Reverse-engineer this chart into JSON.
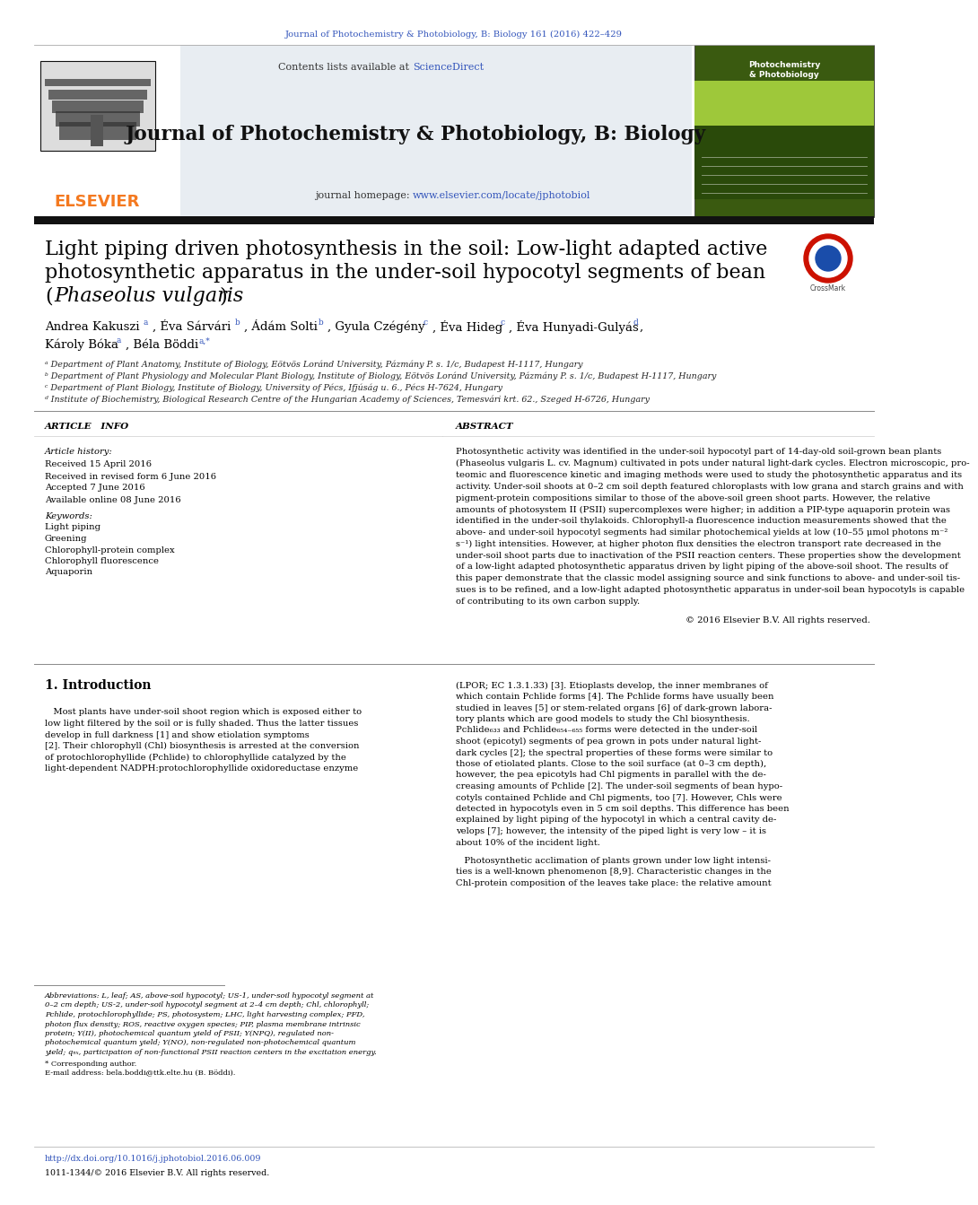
{
  "bg_color": "#ffffff",
  "top_citation": "Journal of Photochemistry & Photobiology, B: Biology 161 (2016) 422–429",
  "journal_name": "Journal of Photochemistry & Photobiology, B: Biology",
  "contents_text": "Contents lists available at ",
  "sciencedirect": "ScienceDirect",
  "journal_homepage_text": "journal homepage: ",
  "journal_url": "www.elsevier.com/locate/jphotobiol",
  "elsevier_color": "#f47920",
  "link_color": "#3355bb",
  "header_bg": "#e8edf2",
  "article_title_1": "Light piping driven photosynthesis in the soil: Low-light adapted active",
  "article_title_2": "photosynthetic apparatus in the under-soil hypocotyl segments of bean",
  "article_title_3a": "(",
  "article_title_3b": "Phaseolus vulgaris",
  "article_title_3c": ")",
  "author_line1": "Andrea Kakuszi",
  "author_line1_rest": ", Éva Sárvári",
  "author_line1_b": ", Ádám Solti",
  "author_line1_c": ", Gyula Czégény",
  "author_line1_d": ", Éva Hideg",
  "author_line1_e": ", Éva Hunyadi-Gulyás",
  "author_line2a": "Károly Bóka",
  "author_line2b": ", Béla Böddi",
  "affil_a": "ᵃ Department of Plant Anatomy, Institute of Biology, Eötvös Loránd University, Pázmány P. s. 1/c, Budapest H-1117, Hungary",
  "affil_b": "ᵇ Department of Plant Physiology and Molecular Plant Biology, Institute of Biology, Eötvös Loránd University, Pázmány P. s. 1/c, Budapest H-1117, Hungary",
  "affil_c": "ᶜ Department of Plant Biology, Institute of Biology, University of Pécs, Ifjúság u. 6., Pécs H-7624, Hungary",
  "affil_d": "ᵈ Institute of Biochemistry, Biological Research Centre of the Hungarian Academy of Sciences, Temesvári krt. 62., Szeged H-6726, Hungary",
  "article_info_title": "ARTICLE   INFO",
  "abstract_title": "ABSTRACT",
  "article_history_label": "Article history:",
  "received1": "Received 15 April 2016",
  "revised": "Received in revised form 6 June 2016",
  "accepted": "Accepted 7 June 2016",
  "online": "Available online 08 June 2016",
  "keywords_label": "Keywords:",
  "kw1": "Light piping",
  "kw2": "Greening",
  "kw3": "Chlorophyll-protein complex",
  "kw4": "Chlorophyll fluorescence",
  "kw5": "Aquaporin",
  "abstract_lines": [
    "Photosynthetic activity was identified in the under-soil hypocotyl part of 14-day-old soil-grown bean plants",
    "(Phaseolus vulgaris L. cv. Magnum) cultivated in pots under natural light-dark cycles. Electron microscopic, pro-",
    "teomic and fluorescence kinetic and imaging methods were used to study the photosynthetic apparatus and its",
    "activity. Under-soil shoots at 0–2 cm soil depth featured chloroplasts with low grana and starch grains and with",
    "pigment-protein compositions similar to those of the above-soil green shoot parts. However, the relative",
    "amounts of photosystem II (PSII) supercomplexes were higher; in addition a PIP-type aquaporin protein was",
    "identified in the under-soil thylakoids. Chlorophyll-a fluorescence induction measurements showed that the",
    "above- and under-soil hypocotyl segments had similar photochemical yields at low (10–55 μmol photons m⁻²",
    "s⁻¹) light intensities. However, at higher photon flux densities the electron transport rate decreased in the",
    "under-soil shoot parts due to inactivation of the PSII reaction centers. These properties show the development",
    "of a low-light adapted photosynthetic apparatus driven by light piping of the above-soil shoot. The results of",
    "this paper demonstrate that the classic model assigning source and sink functions to above- and under-soil tis-",
    "sues is to be refined, and a low-light adapted photosynthetic apparatus in under-soil bean hypocotyls is capable",
    "of contributing to its own carbon supply."
  ],
  "copyright_text": "© 2016 Elsevier B.V. All rights reserved.",
  "intro_title": "1. Introduction",
  "intro_left": [
    "   Most plants have under-soil shoot region which is exposed either to",
    "low light filtered by the soil or is fully shaded. Thus the latter tissues",
    "develop in full darkness [1] and show etiolation symptoms",
    "[2]. Their chlorophyll (Chl) biosynthesis is arrested at the conversion",
    "of protochlorophyllide (Pchlide) to chlorophyllide catalyzed by the",
    "light-dependent NADPH:protochlorophyllide oxidoreductase enzyme"
  ],
  "intro_right": [
    "(LPOR; EC 1.3.1.33) [3]. Etioplasts develop, the inner membranes of",
    "which contain Pchlide forms [4]. The Pchlide forms have usually been",
    "studied in leaves [5] or stem-related organs [6] of dark-grown labora-",
    "tory plants which are good models to study the Chl biosynthesis.",
    "Pchlide₆₃₃ and Pchlide₆₅₄₋₆₅₅ forms were detected in the under-soil",
    "shoot (epicotyl) segments of pea grown in pots under natural light-",
    "dark cycles [2]; the spectral properties of these forms were similar to",
    "those of etiolated plants. Close to the soil surface (at 0–3 cm depth),",
    "however, the pea epicotyls had Chl pigments in parallel with the de-",
    "creasing amounts of Pchlide [2]. The under-soil segments of bean hypo-",
    "cotyls contained Pchlide and Chl pigments, too [7]. However, Chls were",
    "detected in hypocotyls even in 5 cm soil depths. This difference has been",
    "explained by light piping of the hypocotyl in which a central cavity de-",
    "velops [7]; however, the intensity of the piped light is very low – it is",
    "about 10% of the incident light."
  ],
  "intro_right2": [
    "   Photosynthetic acclimation of plants grown under low light intensi-",
    "ties is a well-known phenomenon [8,9]. Characteristic changes in the",
    "Chl-protein composition of the leaves take place: the relative amount"
  ],
  "footnote_lines": [
    "Abbreviations: L, leaf; AS, above-soil hypocotyl; US-1, under-soil hypocotyl segment at",
    "0–2 cm depth; US-2, under-soil hypocotyl segment at 2–4 cm depth; Chl, chlorophyll;",
    "Pchlide, protochlorophyllide; PS, photosystem; LHC, light harvesting complex; PFD,",
    "photon flux density; ROS, reactive oxygen species; PIP, plasma membrane intrinsic",
    "protein; Y(II), photochemical quantum yield of PSII; Y(NPQ), regulated non-",
    "photochemical quantum yield; Y(NO), non-regulated non-photochemical quantum",
    "yield; qₙₓ, participation of non-functional PSII reaction centers in the excitation energy."
  ],
  "footnote_star": "* Corresponding author.",
  "footnote_email": "E-mail address: bela.boddi@ttk.elte.hu (B. Böddi).",
  "doi_text": "http://dx.doi.org/10.1016/j.jphotobiol.2016.06.009",
  "issn_text": "1011-1344/© 2016 Elsevier B.V. All rights reserved."
}
